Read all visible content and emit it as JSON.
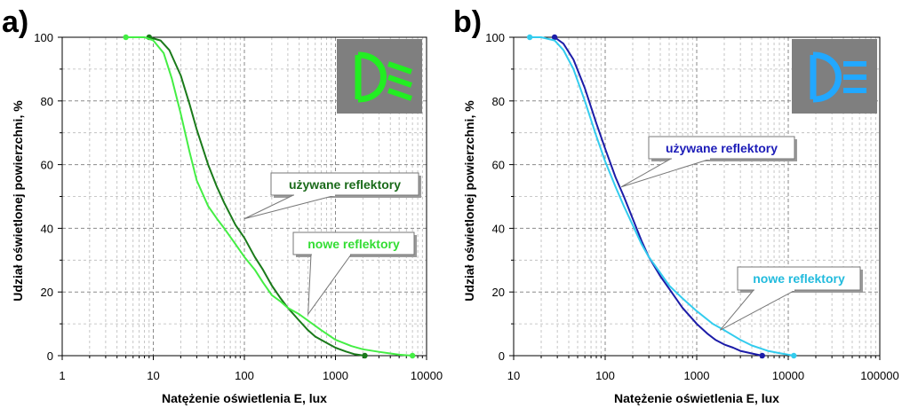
{
  "panels": [
    {
      "letter": "a)",
      "chart_data": {
        "type": "line",
        "xlabel": "Natężenie oświetlenia E, lux",
        "ylabel": "Udział oświetlonej powierzchni, %",
        "xscale": "log",
        "xlim": [
          1,
          10000
        ],
        "ylim": [
          0,
          100
        ],
        "xticks": [
          "1",
          "10",
          "100",
          "1000",
          "10000"
        ],
        "yticks": [
          "0",
          "20",
          "40",
          "60",
          "80",
          "100"
        ],
        "grid": true,
        "icon": "low-beam-headlight-icon",
        "icon_color": "#22ee22",
        "series": [
          {
            "name": "używane reflektory",
            "color": "#1a7a1a",
            "label_color": "#1a6a1a",
            "x": [
              9,
              12,
              15,
              20,
              25,
              30,
              40,
              50,
              60,
              80,
              100,
              130,
              160,
              200,
              250,
              300,
              400,
              500,
              600,
              800,
              1000,
              1300,
              1600,
              2100
            ],
            "y": [
              100,
              99,
              96,
              88,
              79,
              71,
              60,
              53,
              48,
              41,
              37,
              31,
              27,
              22,
              18,
              15,
              11,
              8,
              6,
              4,
              2.5,
              1.3,
              0.5,
              0
            ]
          },
          {
            "name": "nowe reflektory",
            "color": "#44ee44",
            "label_color": "#33dd33",
            "x": [
              5,
              8,
              10,
              13,
              16,
              20,
              25,
              30,
              40,
              50,
              60,
              80,
              100,
              130,
              160,
              200,
              250,
              300,
              400,
              500,
              700,
              1000,
              1500,
              2000,
              3000,
              4000,
              5000,
              7000
            ],
            "y": [
              100,
              100,
              99,
              95,
              87,
              76,
              64,
              55,
              47,
              43,
              40,
              35,
              31,
              27,
              23,
              19,
              17,
              15,
              13,
              11,
              8,
              5,
              3,
              2,
              1.2,
              0.7,
              0.3,
              0
            ]
          }
        ]
      }
    },
    {
      "letter": "b)",
      "chart_data": {
        "type": "line",
        "xlabel": "Natężenie oświetlenia E, lux",
        "ylabel": "Udział oświetlonej powierzchni, %",
        "xscale": "log",
        "xlim": [
          10,
          100000
        ],
        "ylim": [
          0,
          100
        ],
        "xticks": [
          "10",
          "100",
          "1000",
          "10000",
          "100000"
        ],
        "yticks": [
          "0",
          "20",
          "40",
          "60",
          "80",
          "100"
        ],
        "grid": true,
        "icon": "high-beam-headlight-icon",
        "icon_color": "#22a8ff",
        "series": [
          {
            "name": "używane reflektory",
            "color": "#1c1ca8",
            "label_color": "#1c1cb8",
            "x": [
              28,
              35,
              45,
              60,
              80,
              100,
              130,
              160,
              200,
              250,
              300,
              400,
              500,
              700,
              1000,
              1300,
              1600,
              2000,
              2500,
              3000,
              4000,
              5200
            ],
            "y": [
              100,
              98,
              93,
              84,
              73,
              65,
              56,
              50,
              43,
              36,
              31,
              25,
              21,
              15,
              10,
              7,
              5,
              3.5,
              2.5,
              1.5,
              0.7,
              0
            ]
          },
          {
            "name": "nowe reflektory",
            "color": "#33ccee",
            "label_color": "#22bbdd",
            "x": [
              15,
              20,
              28,
              35,
              45,
              60,
              80,
              100,
              130,
              160,
              200,
              250,
              300,
              400,
              500,
              700,
              1000,
              1500,
              2000,
              3000,
              4000,
              6000,
              8000,
              11500
            ],
            "y": [
              100,
              100,
              99,
              96,
              90,
              80,
              69,
              61,
              53,
              47,
              41,
              35,
              31,
              26,
              22,
              18,
              14,
              10,
              8,
              5,
              3.2,
              1.5,
              0.8,
              0
            ]
          }
        ]
      }
    }
  ]
}
